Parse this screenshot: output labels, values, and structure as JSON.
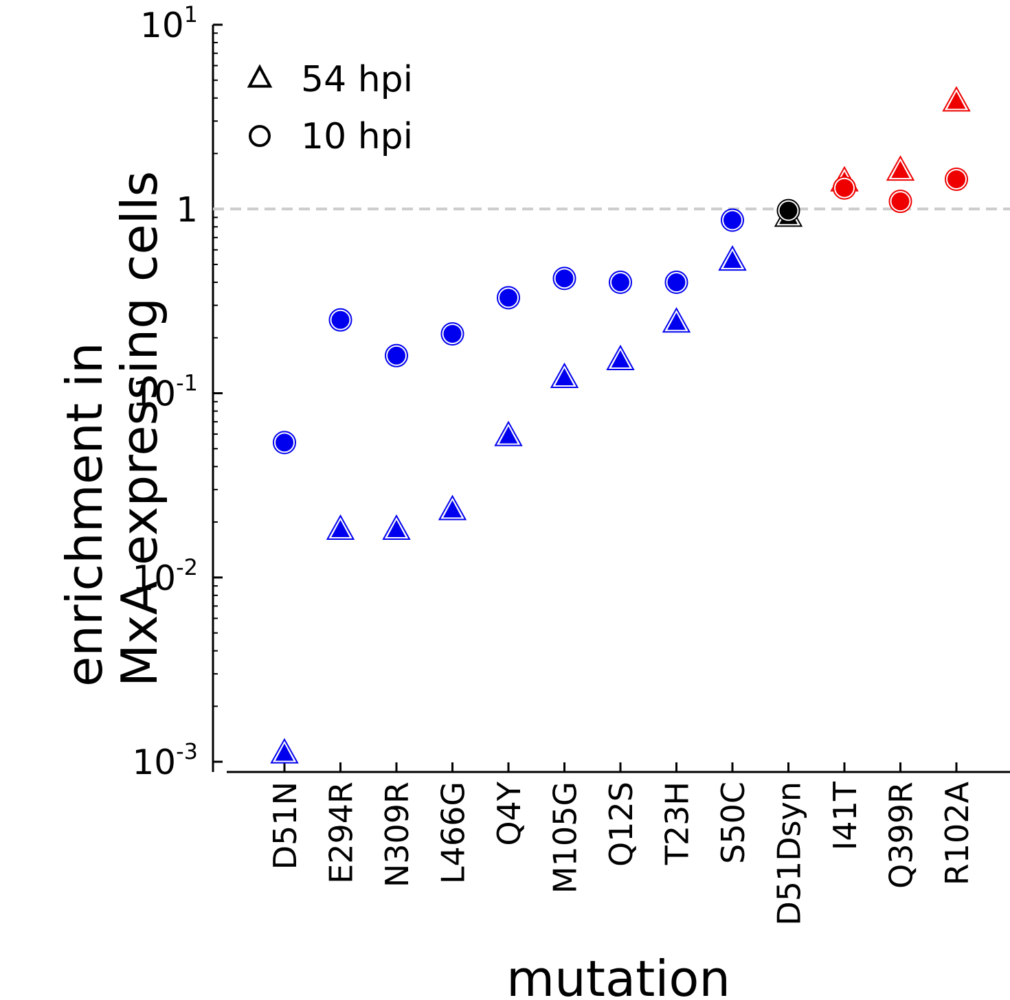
{
  "chart_data": {
    "type": "scatter",
    "xlabel": "mutation",
    "ylabel": [
      "enrichment in",
      "MxA expressing cells"
    ],
    "yscale": "log",
    "ylim": [
      0.00088,
      10
    ],
    "yticks": [
      {
        "value": 0.001,
        "base": "10",
        "exp": "-3"
      },
      {
        "value": 0.01,
        "base": "10",
        "exp": "-2"
      },
      {
        "value": 0.1,
        "base": "10",
        "exp": "-1"
      },
      {
        "value": 1,
        "base": "1",
        "exp": ""
      },
      {
        "value": 10,
        "base": "10",
        "exp": "1"
      }
    ],
    "reference_line": {
      "y": 1,
      "style": "dashed",
      "color": "#cccccc"
    },
    "categories": [
      "D51N",
      "E294R",
      "N309R",
      "L466G",
      "Q4Y",
      "M105G",
      "Q12S",
      "T23H",
      "S50C",
      "D51Dsyn",
      "I41T",
      "Q399R",
      "R102A"
    ],
    "point_colors": [
      "#0000ee",
      "#0000ee",
      "#0000ee",
      "#0000ee",
      "#0000ee",
      "#0000ee",
      "#0000ee",
      "#0000ee",
      "#0000ee",
      "#000000",
      "#ee0000",
      "#ee0000",
      "#ee0000"
    ],
    "series": [
      {
        "name": "54 hpi",
        "marker": "triangle",
        "values": [
          0.0011,
          0.018,
          0.018,
          0.023,
          0.058,
          0.12,
          0.15,
          0.24,
          0.52,
          0.9,
          1.4,
          1.6,
          3.8
        ]
      },
      {
        "name": "10 hpi",
        "marker": "circle",
        "values": [
          0.054,
          0.25,
          0.16,
          0.21,
          0.33,
          0.42,
          0.4,
          0.4,
          0.87,
          0.98,
          1.3,
          1.1,
          1.45
        ]
      }
    ],
    "legend": {
      "position": "top-left"
    },
    "grid": false
  }
}
